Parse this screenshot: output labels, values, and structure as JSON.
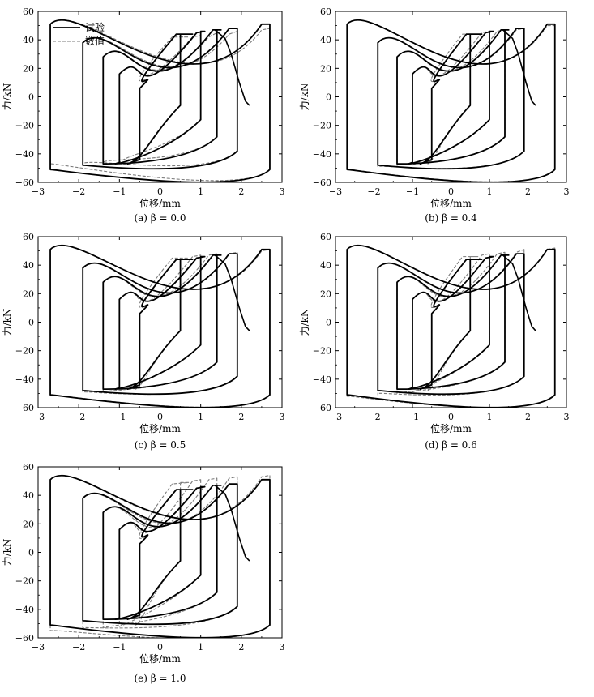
{
  "legend": {
    "test": "试验",
    "numerical": "数值"
  },
  "chart_data": [
    {
      "type": "line",
      "caption": "(a) β = 0.0",
      "xlabel": "位移/mm",
      "ylabel": "力/kN",
      "xlim": [
        -3,
        3
      ],
      "ylim": [
        -60,
        60
      ],
      "xticks": [
        "−3",
        "−2",
        "−1",
        "0",
        "1",
        "2",
        "3"
      ],
      "yticks": [
        "60",
        "40",
        "20",
        "0",
        "−20",
        "−40",
        "−60"
      ],
      "legend_shown": true,
      "legend_position": "top-left",
      "grid": false,
      "series": [
        {
          "name": "试验",
          "style": "solid",
          "color": "#000000",
          "loops": [
            [
              0.5,
              0.5,
              -6,
              -0.4,
              -44,
              -0.8,
              -47,
              0.7,
              -44,
              0.8,
              44
            ],
            [
              1.0,
              1.0,
              -16,
              -0.8,
              -46,
              -1.1,
              -47,
              1.2,
              -45,
              1.1,
              46
            ],
            [
              1.4,
              1.4,
              -28,
              -1.3,
              -47,
              -1.4,
              -47,
              1.6,
              -47,
              1.5,
              47
            ],
            [
              1.9,
              1.9,
              -38,
              -1.7,
              -48,
              -1.9,
              -48,
              2.0,
              -48,
              1.9,
              48
            ],
            [
              2.7,
              2.7,
              -51,
              -2.5,
              -51,
              -2.7,
              -51,
              2.8,
              -51,
              2.7,
              51
            ]
          ],
          "tail": [
            [
              1.35,
              47
            ],
            [
              1.6,
              41
            ],
            [
              1.75,
              30
            ],
            [
              1.95,
              10
            ],
            [
              2.1,
              -3
            ],
            [
              2.2,
              -6
            ]
          ]
        },
        {
          "name": "数值",
          "style": "dashed",
          "color": "#7a7a7a",
          "loops": [
            [
              0.5,
              0.5,
              -6,
              -0.4,
              -41,
              -0.6,
              -45,
              0.6,
              -42,
              0.7,
              42
            ],
            [
              1.0,
              1.0,
              -16,
              -0.8,
              -40,
              -1.0,
              -46,
              1.1,
              -42,
              1.0,
              43
            ],
            [
              1.4,
              1.4,
              -28,
              -1.3,
              -42,
              -1.4,
              -46,
              1.5,
              -42,
              1.4,
              45
            ],
            [
              1.9,
              1.9,
              -38,
              -1.8,
              -42,
              -1.9,
              -47,
              2.0,
              -44,
              1.9,
              46
            ],
            [
              2.7,
              2.7,
              -51,
              -2.6,
              -46,
              -2.7,
              -47,
              2.8,
              -47,
              2.7,
              48
            ]
          ]
        }
      ]
    },
    {
      "type": "line",
      "caption": "(b) β = 0.4",
      "xlabel": "位移/mm",
      "ylabel": "力/kN",
      "xlim": [
        -3,
        3
      ],
      "ylim": [
        -60,
        60
      ],
      "xticks": [
        "−3",
        "−2",
        "−1",
        "0",
        "1",
        "2",
        "3"
      ],
      "yticks": [
        "60",
        "40",
        "20",
        "0",
        "−20",
        "−40",
        "−60"
      ],
      "legend_shown": false,
      "grid": false,
      "series": [
        {
          "name": "试验",
          "style": "solid",
          "color": "#000000",
          "loops": [
            [
              0.5,
              0.5,
              -6,
              -0.4,
              -44,
              -0.8,
              -47,
              0.7,
              -44,
              0.8,
              44
            ],
            [
              1.0,
              1.0,
              -16,
              -0.8,
              -46,
              -1.1,
              -47,
              1.2,
              -45,
              1.1,
              46
            ],
            [
              1.4,
              1.4,
              -28,
              -1.3,
              -47,
              -1.4,
              -47,
              1.6,
              -47,
              1.5,
              47
            ],
            [
              1.9,
              1.9,
              -38,
              -1.7,
              -48,
              -1.9,
              -48,
              2.0,
              -48,
              1.9,
              48
            ],
            [
              2.7,
              2.7,
              -51,
              -2.5,
              -51,
              -2.7,
              -51,
              2.8,
              -51,
              2.7,
              51
            ]
          ],
          "tail": [
            [
              1.35,
              47
            ],
            [
              1.6,
              41
            ],
            [
              1.75,
              30
            ],
            [
              1.95,
              10
            ],
            [
              2.1,
              -3
            ],
            [
              2.2,
              -6
            ]
          ]
        },
        {
          "name": "数值",
          "style": "dashed",
          "color": "#7a7a7a",
          "loops": [
            [
              0.5,
              0.5,
              -6,
              -0.4,
              -44,
              -0.6,
              -47,
              0.6,
              -44,
              0.7,
              44
            ],
            [
              1.0,
              1.0,
              -16,
              -0.8,
              -45,
              -1.0,
              -48,
              1.1,
              -45,
              1.0,
              46
            ],
            [
              1.4,
              1.4,
              -28,
              -1.3,
              -46,
              -1.4,
              -48,
              1.5,
              -46,
              1.4,
              47
            ],
            [
              1.9,
              1.9,
              -38,
              -1.8,
              -47,
              -1.9,
              -49,
              2.0,
              -47,
              1.9,
              48
            ],
            [
              2.7,
              2.7,
              -51,
              -2.6,
              -50,
              -2.7,
              -51,
              2.8,
              -50,
              2.7,
              50
            ]
          ]
        }
      ]
    },
    {
      "type": "line",
      "caption": "(c) β = 0.5",
      "xlabel": "位移/mm",
      "ylabel": "力/kN",
      "xlim": [
        -3,
        3
      ],
      "ylim": [
        -60,
        60
      ],
      "xticks": [
        "−3",
        "−2",
        "−1",
        "0",
        "1",
        "2",
        "3"
      ],
      "yticks": [
        "60",
        "40",
        "20",
        "0",
        "−20",
        "−40",
        "−60"
      ],
      "legend_shown": false,
      "grid": false,
      "series": [
        {
          "name": "试验",
          "style": "solid",
          "color": "#000000",
          "loops": [
            [
              0.5,
              0.5,
              -6,
              -0.4,
              -44,
              -0.8,
              -47,
              0.7,
              -44,
              0.8,
              44
            ],
            [
              1.0,
              1.0,
              -16,
              -0.8,
              -46,
              -1.1,
              -47,
              1.2,
              -45,
              1.1,
              46
            ],
            [
              1.4,
              1.4,
              -28,
              -1.3,
              -47,
              -1.4,
              -47,
              1.6,
              -47,
              1.5,
              47
            ],
            [
              1.9,
              1.9,
              -38,
              -1.7,
              -48,
              -1.9,
              -48,
              2.0,
              -48,
              1.9,
              48
            ],
            [
              2.7,
              2.7,
              -51,
              -2.5,
              -51,
              -2.7,
              -51,
              2.8,
              -51,
              2.7,
              51
            ]
          ],
          "tail": [
            [
              1.35,
              47
            ],
            [
              1.6,
              41
            ],
            [
              1.75,
              30
            ],
            [
              1.95,
              10
            ],
            [
              2.1,
              -3
            ],
            [
              2.2,
              -6
            ]
          ]
        },
        {
          "name": "数值",
          "style": "dashed",
          "color": "#7a7a7a",
          "loops": [
            [
              0.5,
              0.5,
              -6,
              -0.4,
              -45,
              -0.6,
              -47,
              0.6,
              -45,
              0.7,
              45
            ],
            [
              1.0,
              1.0,
              -16,
              -0.8,
              -46,
              -1.0,
              -48,
              1.1,
              -46,
              1.0,
              47
            ],
            [
              1.4,
              1.4,
              -28,
              -1.3,
              -47,
              -1.4,
              -49,
              1.5,
              -47,
              1.4,
              48
            ],
            [
              1.9,
              1.9,
              -38,
              -1.8,
              -48,
              -1.9,
              -49,
              2.0,
              -48,
              1.9,
              49
            ],
            [
              2.7,
              2.7,
              -51,
              -2.6,
              -50,
              -2.7,
              -51,
              2.8,
              -50,
              2.7,
              51
            ]
          ]
        }
      ]
    },
    {
      "type": "line",
      "caption": "(d) β = 0.6",
      "xlabel": "位移/mm",
      "ylabel": "力/kN",
      "xlim": [
        -3,
        3
      ],
      "ylim": [
        -60,
        60
      ],
      "xticks": [
        "−3",
        "−2",
        "−1",
        "0",
        "1",
        "2",
        "3"
      ],
      "yticks": [
        "60",
        "40",
        "20",
        "0",
        "−20",
        "−40",
        "−60"
      ],
      "legend_shown": false,
      "grid": false,
      "series": [
        {
          "name": "试验",
          "style": "solid",
          "color": "#000000",
          "loops": [
            [
              0.5,
              0.5,
              -6,
              -0.4,
              -44,
              -0.8,
              -47,
              0.7,
              -44,
              0.8,
              44
            ],
            [
              1.0,
              1.0,
              -16,
              -0.8,
              -46,
              -1.1,
              -47,
              1.2,
              -45,
              1.1,
              46
            ],
            [
              1.4,
              1.4,
              -28,
              -1.3,
              -47,
              -1.4,
              -47,
              1.6,
              -47,
              1.5,
              47
            ],
            [
              1.9,
              1.9,
              -38,
              -1.7,
              -48,
              -1.9,
              -48,
              2.0,
              -48,
              1.9,
              48
            ],
            [
              2.7,
              2.7,
              -51,
              -2.5,
              -51,
              -2.7,
              -51,
              2.8,
              -51,
              2.7,
              51
            ]
          ],
          "tail": [
            [
              1.35,
              47
            ],
            [
              1.6,
              41
            ],
            [
              1.75,
              30
            ],
            [
              1.95,
              10
            ],
            [
              2.1,
              -3
            ],
            [
              2.2,
              -6
            ]
          ]
        },
        {
          "name": "数值",
          "style": "dashed",
          "color": "#7a7a7a",
          "loops": [
            [
              0.5,
              0.5,
              -6,
              -0.4,
              -46,
              -0.6,
              -48,
              0.6,
              -46,
              0.7,
              46
            ],
            [
              1.0,
              1.0,
              -16,
              -0.8,
              -47,
              -1.0,
              -49,
              1.1,
              -47,
              1.0,
              48
            ],
            [
              1.4,
              1.4,
              -28,
              -1.3,
              -48,
              -1.4,
              -50,
              1.5,
              -48,
              1.4,
              49
            ],
            [
              1.9,
              1.9,
              -38,
              -1.8,
              -49,
              -1.9,
              -50,
              2.0,
              -49,
              1.9,
              51
            ],
            [
              2.7,
              2.7,
              -51,
              -2.6,
              -51,
              -2.7,
              -52,
              2.8,
              -51,
              2.7,
              52
            ]
          ]
        }
      ]
    },
    {
      "type": "line",
      "caption": "(e) β = 1.0",
      "xlabel": "位移/mm",
      "ylabel": "力/kN",
      "xlim": [
        -3,
        3
      ],
      "ylim": [
        -60,
        60
      ],
      "xticks": [
        "−3",
        "−2",
        "−1",
        "0",
        "1",
        "2",
        "3"
      ],
      "yticks": [
        "60",
        "40",
        "20",
        "0",
        "−20",
        "−40",
        "−60"
      ],
      "legend_shown": false,
      "grid": false,
      "series": [
        {
          "name": "试验",
          "style": "solid",
          "color": "#000000",
          "loops": [
            [
              0.5,
              0.5,
              -6,
              -0.4,
              -44,
              -0.8,
              -47,
              0.7,
              -44,
              0.8,
              44
            ],
            [
              1.0,
              1.0,
              -16,
              -0.8,
              -46,
              -1.1,
              -47,
              1.2,
              -45,
              1.1,
              46
            ],
            [
              1.4,
              1.4,
              -28,
              -1.3,
              -47,
              -1.4,
              -47,
              1.6,
              -47,
              1.5,
              47
            ],
            [
              1.9,
              1.9,
              -38,
              -1.7,
              -48,
              -1.9,
              -48,
              2.0,
              -48,
              1.9,
              48
            ],
            [
              2.7,
              2.7,
              -51,
              -2.5,
              -51,
              -2.7,
              -51,
              2.8,
              -51,
              2.7,
              51
            ]
          ],
          "tail": [
            [
              1.35,
              47
            ],
            [
              1.6,
              41
            ],
            [
              1.75,
              30
            ],
            [
              1.95,
              10
            ],
            [
              2.1,
              -3
            ],
            [
              2.2,
              -6
            ]
          ]
        },
        {
          "name": "数值",
          "style": "dashed",
          "color": "#7a7a7a",
          "loops": [
            [
              0.5,
              0.5,
              -6,
              -0.4,
              -48,
              -0.6,
              -51,
              0.6,
              -48,
              0.7,
              49
            ],
            [
              1.0,
              1.0,
              -16,
              -0.8,
              -50,
              -1.0,
              -52,
              1.1,
              -50,
              1.0,
              51
            ],
            [
              1.4,
              1.4,
              -28,
              -1.3,
              -51,
              -1.4,
              -53,
              1.5,
              -51,
              1.4,
              52
            ],
            [
              1.9,
              1.9,
              -38,
              -1.8,
              -52,
              -1.9,
              -53,
              2.0,
              -52,
              1.9,
              53
            ],
            [
              2.7,
              2.7,
              -51,
              -2.6,
              -53,
              -2.7,
              -55,
              2.8,
              -53,
              2.7,
              54
            ]
          ]
        }
      ]
    }
  ]
}
